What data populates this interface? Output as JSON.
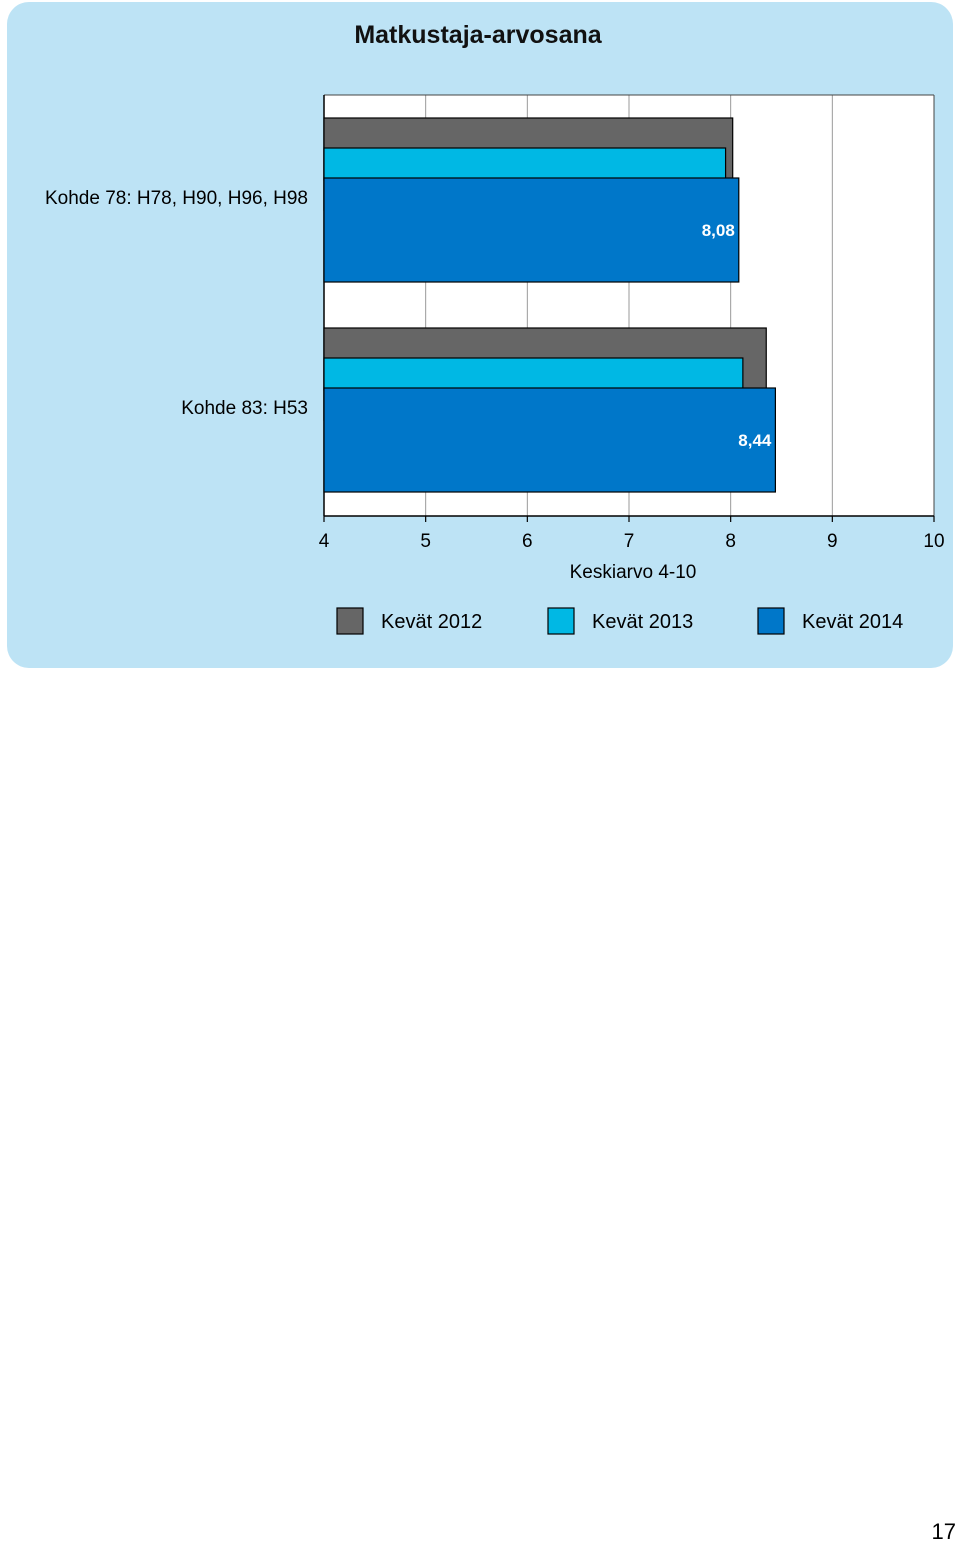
{
  "page": {
    "number": "17"
  },
  "chart_data": {
    "type": "bar",
    "orientation": "horizontal",
    "title": "Matkustaja-arvosana",
    "xlabel": "Keskiarvo 4-10",
    "ylabel": "",
    "xlim": [
      4,
      10
    ],
    "xticks": [
      "4",
      "5",
      "6",
      "7",
      "8",
      "9",
      "10"
    ],
    "grid": true,
    "legend_position": "bottom",
    "categories": [
      "Kohde 78: H78, H90, H96, H98",
      "Kohde 83: H53"
    ],
    "series": [
      {
        "name": "Kevät 2012",
        "color": "#666666",
        "values": [
          8.02,
          8.35
        ]
      },
      {
        "name": "Kevät 2013",
        "color": "#00b8e4",
        "values": [
          7.95,
          8.12
        ]
      },
      {
        "name": "Kevät 2014",
        "color": "#0077c9",
        "values": [
          8.08,
          8.44
        ]
      }
    ],
    "data_labels": [
      {
        "category": 0,
        "series": 2,
        "text": "8,08"
      },
      {
        "category": 1,
        "series": 2,
        "text": "8,44"
      }
    ]
  }
}
